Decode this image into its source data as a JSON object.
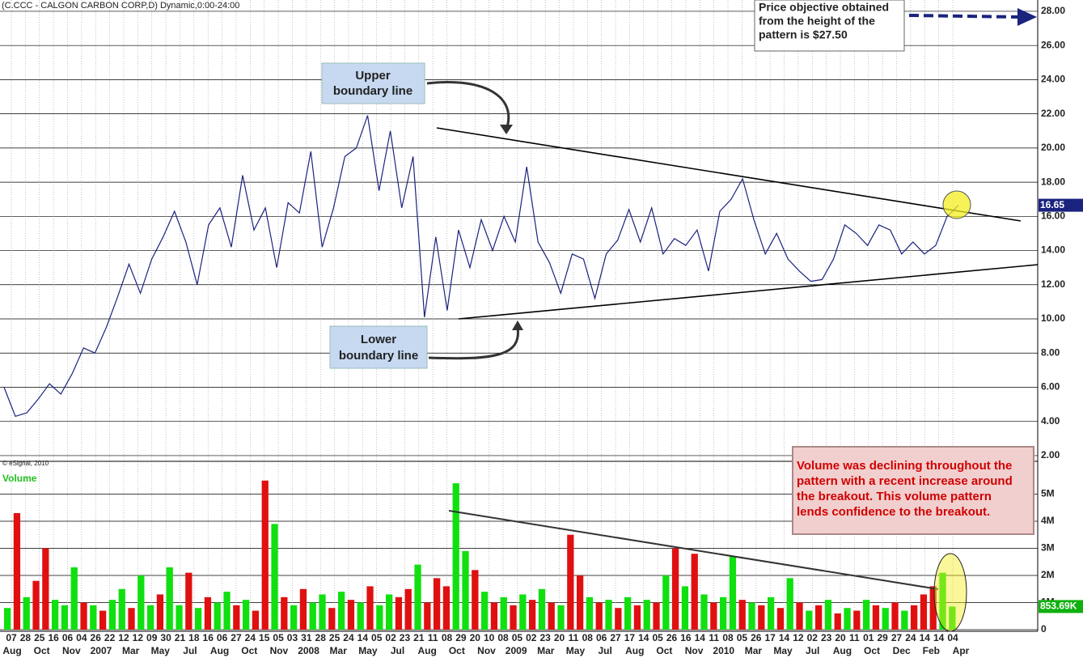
{
  "chart_data": [
    {
      "type": "line",
      "title": "(C.CCC - CALGON CARBON CORP,D) Dynamic,0:00-24:00",
      "color": "#1a237e",
      "values": [
        6.0,
        4.3,
        4.5,
        5.3,
        6.2,
        5.6,
        6.8,
        8.3,
        8.0,
        9.5,
        11.3,
        13.2,
        11.5,
        13.5,
        14.8,
        16.3,
        14.5,
        12.0,
        15.5,
        16.5,
        14.2,
        18.4,
        15.2,
        16.5,
        13.0,
        16.8,
        16.2,
        19.8,
        14.2,
        16.5,
        19.5,
        20.0,
        21.9,
        17.5,
        21.0,
        16.5,
        19.5,
        10.1,
        14.8,
        10.5,
        15.2,
        13.0,
        15.8,
        14.0,
        16.0,
        14.5,
        18.9,
        14.5,
        13.3,
        11.5,
        13.8,
        13.5,
        11.2,
        13.8,
        14.6,
        16.4,
        14.5,
        16.5,
        13.8,
        14.7,
        14.3,
        15.2,
        12.8,
        16.3,
        17.0,
        18.2,
        15.8,
        13.8,
        15.0,
        13.5,
        12.8,
        12.2,
        12.3,
        13.5,
        15.5,
        15.0,
        14.3,
        15.5,
        15.2,
        13.8,
        14.5,
        13.8,
        14.3,
        16.0,
        16.65
      ],
      "ylim": [
        1.76,
        28.66
      ],
      "yticks": [
        {
          "value": 2,
          "label": "2.00"
        },
        {
          "value": 4,
          "label": "4.00"
        },
        {
          "value": 6,
          "label": "6.00"
        },
        {
          "value": 8,
          "label": "8.00"
        },
        {
          "value": 10,
          "label": "10.00"
        },
        {
          "value": 12,
          "label": "12.00"
        },
        {
          "value": 14,
          "label": "14.00"
        },
        {
          "value": 16,
          "label": "16.00"
        },
        {
          "value": 18,
          "label": "18.00"
        },
        {
          "value": 20,
          "label": "20.00"
        },
        {
          "value": 22,
          "label": "22.00"
        },
        {
          "value": 24,
          "label": "24.00"
        },
        {
          "value": 26,
          "label": "26.00"
        },
        {
          "value": 28,
          "label": "28.00"
        }
      ],
      "last_value": 16.65,
      "copyright": "© eSignal, 2010",
      "annotations": {
        "upper": [
          "Upper",
          "boundary line"
        ],
        "lower": [
          "Lower",
          "boundary line"
        ],
        "objective": [
          "Price objective obtained",
          "from the height of the",
          "pattern is $27.50"
        ]
      }
    },
    {
      "type": "bar",
      "title": "Volume",
      "values": [
        0.8,
        4.3,
        1.2,
        1.8,
        3.0,
        1.1,
        0.9,
        2.3,
        1.0,
        0.9,
        0.7,
        1.1,
        1.5,
        0.8,
        2.0,
        0.9,
        1.3,
        2.3,
        0.9,
        2.1,
        0.8,
        1.2,
        1.0,
        1.4,
        0.9,
        1.1,
        0.7,
        5.5,
        3.9,
        1.2,
        0.9,
        1.5,
        1.0,
        1.3,
        0.8,
        1.4,
        1.1,
        1.0,
        1.6,
        0.9,
        1.3,
        1.2,
        1.5,
        2.4,
        1.0,
        1.9,
        1.6,
        5.4,
        2.9,
        2.2,
        1.4,
        1.0,
        1.2,
        0.9,
        1.3,
        1.1,
        1.5,
        1.0,
        0.9,
        3.5,
        2.0,
        1.2,
        1.0,
        1.1,
        0.8,
        1.2,
        0.9,
        1.1,
        1.0,
        2.0,
        3.0,
        1.6,
        2.8,
        1.3,
        1.0,
        1.2,
        2.7,
        1.1,
        1.0,
        0.9,
        1.2,
        0.8,
        1.9,
        1.0,
        0.7,
        0.9,
        1.1,
        0.6,
        0.8,
        0.7,
        1.1,
        0.9,
        0.8,
        1.0,
        0.7,
        0.9,
        1.3,
        1.6,
        2.1,
        0.85369
      ],
      "bar_colors": [
        "#10e010",
        "#e01010",
        "#10e010",
        "#e01010",
        "#e01010",
        "#10e010",
        "#10e010",
        "#10e010",
        "#e01010",
        "#10e010",
        "#e01010",
        "#10e010",
        "#10e010",
        "#e01010",
        "#10e010",
        "#10e010",
        "#e01010",
        "#10e010",
        "#10e010",
        "#e01010",
        "#10e010",
        "#e01010",
        "#10e010",
        "#10e010",
        "#e01010",
        "#10e010",
        "#e01010",
        "#e01010",
        "#10e010",
        "#e01010",
        "#10e010",
        "#e01010",
        "#10e010",
        "#10e010",
        "#e01010",
        "#10e010",
        "#e01010",
        "#10e010",
        "#e01010",
        "#10e010",
        "#10e010",
        "#e01010",
        "#e01010",
        "#10e010",
        "#e01010",
        "#e01010",
        "#e01010",
        "#10e010",
        "#10e010",
        "#e01010",
        "#10e010",
        "#e01010",
        "#10e010",
        "#e01010",
        "#10e010",
        "#e01010",
        "#10e010",
        "#e01010",
        "#10e010",
        "#e01010",
        "#e01010",
        "#10e010",
        "#e01010",
        "#10e010",
        "#e01010",
        "#10e010",
        "#e01010",
        "#10e010",
        "#e01010",
        "#10e010",
        "#e01010",
        "#10e010",
        "#e01010",
        "#10e010",
        "#e01010",
        "#10e010",
        "#10e010",
        "#e01010",
        "#10e010",
        "#e01010",
        "#10e010",
        "#e01010",
        "#10e010",
        "#e01010",
        "#10e010",
        "#e01010",
        "#10e010",
        "#e01010",
        "#10e010",
        "#e01010",
        "#10e010",
        "#e01010",
        "#10e010",
        "#e01010",
        "#10e010",
        "#e01010",
        "#e01010",
        "#e01010",
        "#10e010",
        "#10e010"
      ],
      "ylim": [
        0,
        6.12
      ],
      "yticks": [
        0,
        {
          "value": 1,
          "label": "1M"
        },
        {
          "value": 2,
          "label": "2M"
        },
        {
          "value": 3,
          "label": "3M"
        },
        {
          "value": 4,
          "label": "4M"
        },
        {
          "value": 5,
          "label": "5M"
        }
      ],
      "last_value": {
        "value": 0.85369,
        "label": "853.69K"
      },
      "annotation": [
        "Volume was declining throughout the",
        "pattern with a recent increase around",
        "the breakout. This volume pattern",
        "lends confidence to the breakout."
      ]
    }
  ],
  "x_axis": {
    "day_labels": [
      "07",
      "28",
      "25",
      "16",
      "06",
      "04",
      "26",
      "22",
      "12",
      "12",
      "09",
      "30",
      "21",
      "18",
      "16",
      "06",
      "27",
      "24",
      "15",
      "05",
      "03",
      "31",
      "28",
      "25",
      "24",
      "14",
      "05",
      "02",
      "23",
      "21",
      "11",
      "08",
      "29",
      "20",
      "10",
      "08",
      "05",
      "02",
      "23",
      "20",
      "11",
      "08",
      "06",
      "27",
      "17",
      "14",
      "05",
      "26",
      "16",
      "14",
      "11",
      "08",
      "05",
      "26",
      "17",
      "14",
      "12",
      "02",
      "23",
      "20",
      "11",
      "01",
      "29",
      "27",
      "24",
      "14",
      "14",
      "04"
    ],
    "period_labels": [
      "Aug",
      "Oct",
      "Nov",
      "2007",
      "Mar",
      "May",
      "Jul",
      "Aug",
      "Oct",
      "Nov",
      "2008",
      "Mar",
      "May",
      "Jul",
      "Aug",
      "Oct",
      "Nov",
      "2009",
      "Mar",
      "May",
      "Jul",
      "Aug",
      "Oct",
      "Nov",
      "2010",
      "Mar",
      "May",
      "Jul",
      "Aug",
      "Oct",
      "Dec",
      "Feb",
      "Apr"
    ]
  }
}
